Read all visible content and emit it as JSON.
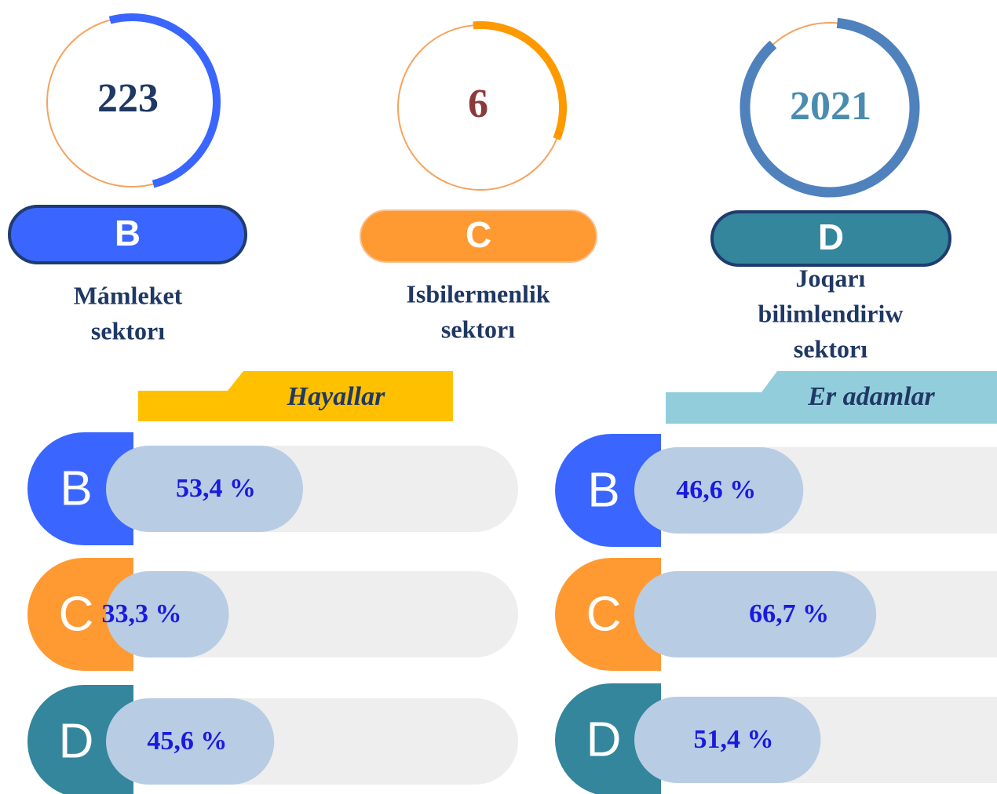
{
  "sectors": [
    {
      "letter": "B",
      "count": 223,
      "name_lines": [
        "Mámleket",
        "sektorı"
      ],
      "color": "#3a66ff"
    },
    {
      "letter": "C",
      "count": 6,
      "name_lines": [
        "Isbilermenlik",
        "sektorı"
      ],
      "color": "#ff9a33"
    },
    {
      "letter": "D",
      "count": 2021,
      "name_lines": [
        "Joqarı",
        "bilimlendiriw",
        "sektorı"
      ],
      "color": "#33869b"
    }
  ],
  "chart_data": [
    {
      "type": "bar",
      "title": "Hayallar",
      "categories": [
        "B",
        "C",
        "D"
      ],
      "values": [
        53.4,
        33.3,
        45.6
      ],
      "value_labels": [
        "53,4 %",
        "33,3 %",
        "45,6 %"
      ],
      "colors": [
        "#3a66ff",
        "#ff9a33",
        "#33869b"
      ],
      "xlim": [
        0,
        100
      ]
    },
    {
      "type": "bar",
      "title": "Er adamlar",
      "categories": [
        "B",
        "C",
        "D"
      ],
      "values": [
        46.6,
        66.7,
        51.4
      ],
      "value_labels": [
        "46,6 %",
        "66,7 %",
        "51,4 %"
      ],
      "colors": [
        "#3a66ff",
        "#ff9a33",
        "#33869b"
      ],
      "xlim": [
        0,
        100
      ]
    }
  ]
}
